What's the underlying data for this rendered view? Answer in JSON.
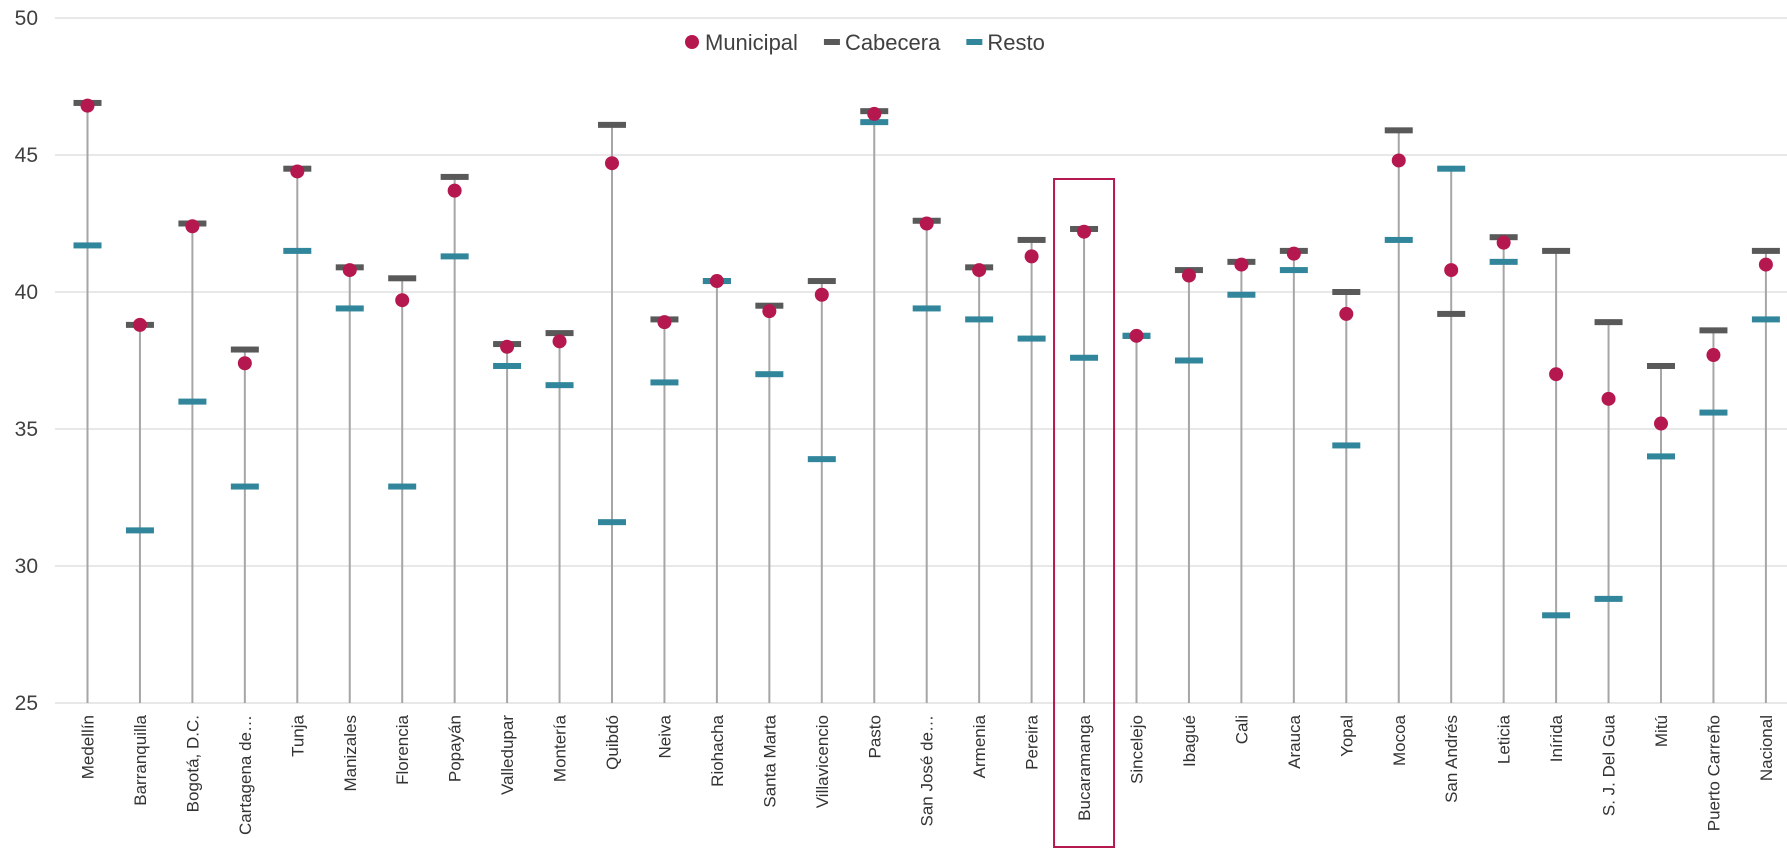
{
  "chart_data": {
    "type": "scatter",
    "ylim": [
      25,
      50
    ],
    "yticks": [
      25,
      30,
      35,
      40,
      45,
      50
    ],
    "grid": true,
    "legend_position": "top-center",
    "highlighted_category": "Bucaramanga",
    "categories": [
      "Medellín",
      "Barranquilla",
      "Bogotá, D.C.",
      "Cartagena de…",
      "Tunja",
      "Manizales",
      "Florencia",
      "Popayán",
      "Valledupar",
      "Montería",
      "Quibdó",
      "Neiva",
      "Riohacha",
      "Santa Marta",
      "Villavicencio",
      "Pasto",
      "San José de…",
      "Armenia",
      "Pereira",
      "Bucaramanga",
      "Sincelejo",
      "Ibagué",
      "Cali",
      "Arauca",
      "Yopal",
      "Mocoa",
      "San Andrés",
      "Leticia",
      "Inírida",
      "S. J. Del Gua",
      "Mitú",
      "Puerto Carreño",
      "Nacional"
    ],
    "series": [
      {
        "name": "Municipal",
        "marker": "circle",
        "color": "#B5174F",
        "values": [
          46.8,
          38.8,
          42.4,
          37.4,
          44.4,
          40.8,
          39.7,
          43.7,
          38.0,
          38.2,
          44.7,
          38.9,
          40.4,
          39.3,
          39.9,
          46.5,
          42.5,
          40.8,
          41.3,
          42.2,
          38.4,
          40.6,
          41.0,
          41.4,
          39.2,
          44.8,
          40.8,
          41.8,
          37.0,
          36.1,
          35.2,
          37.7,
          41.0
        ]
      },
      {
        "name": "Cabecera",
        "marker": "dash",
        "color": "#595959",
        "values": [
          46.9,
          38.8,
          42.5,
          37.9,
          44.5,
          40.9,
          40.5,
          44.2,
          38.1,
          38.5,
          46.1,
          39.0,
          40.4,
          39.5,
          40.4,
          46.6,
          42.6,
          40.9,
          41.9,
          42.3,
          38.4,
          40.8,
          41.1,
          41.5,
          40.0,
          45.9,
          39.2,
          42.0,
          41.5,
          38.9,
          37.3,
          38.6,
          41.5
        ]
      },
      {
        "name": "Resto",
        "marker": "dash",
        "color": "#31869B",
        "values": [
          41.7,
          31.3,
          36.0,
          32.9,
          41.5,
          39.4,
          32.9,
          41.3,
          37.3,
          36.6,
          31.6,
          36.7,
          40.4,
          37.0,
          33.9,
          46.2,
          39.4,
          39.0,
          38.3,
          37.6,
          38.4,
          37.5,
          39.9,
          40.8,
          34.4,
          41.9,
          44.5,
          41.1,
          28.2,
          28.8,
          34.0,
          35.6,
          39.0
        ]
      }
    ]
  }
}
